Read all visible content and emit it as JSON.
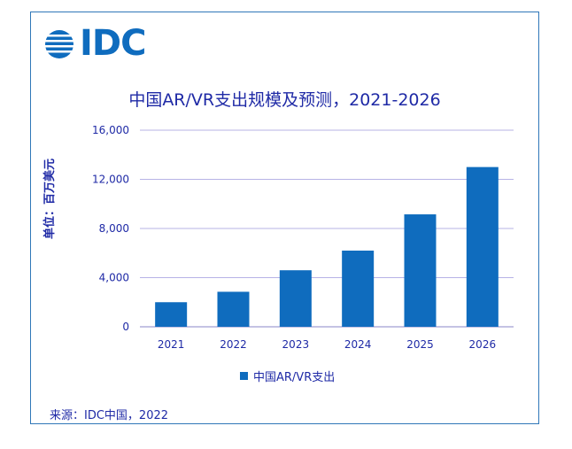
{
  "logo": {
    "text": "IDC"
  },
  "chart_data": {
    "type": "bar",
    "title": "中国AR/VR支出规模及预测，2021-2026",
    "ylabel": "单位：百万美元",
    "xlabel": "",
    "categories": [
      "2021",
      "2022",
      "2023",
      "2024",
      "2025",
      "2026"
    ],
    "series": [
      {
        "name": "中国AR/VR支出",
        "values": [
          2000,
          2850,
          4600,
          6200,
          9150,
          13000
        ],
        "color": "#0f6cbe"
      }
    ],
    "ylim": [
      0,
      16000
    ],
    "yticks": [
      "0",
      "4,000",
      "8,000",
      "12,000",
      "16,000"
    ],
    "ytick_values": [
      0,
      4000,
      8000,
      12000,
      16000
    ],
    "grid": true,
    "legend_position": "bottom"
  },
  "source": "来源：IDC中国，2022",
  "colors": {
    "bar": "#0f6cbe",
    "grid": "#b7b3e6",
    "text": "#1f2aa6",
    "border": "#2f77b8"
  }
}
